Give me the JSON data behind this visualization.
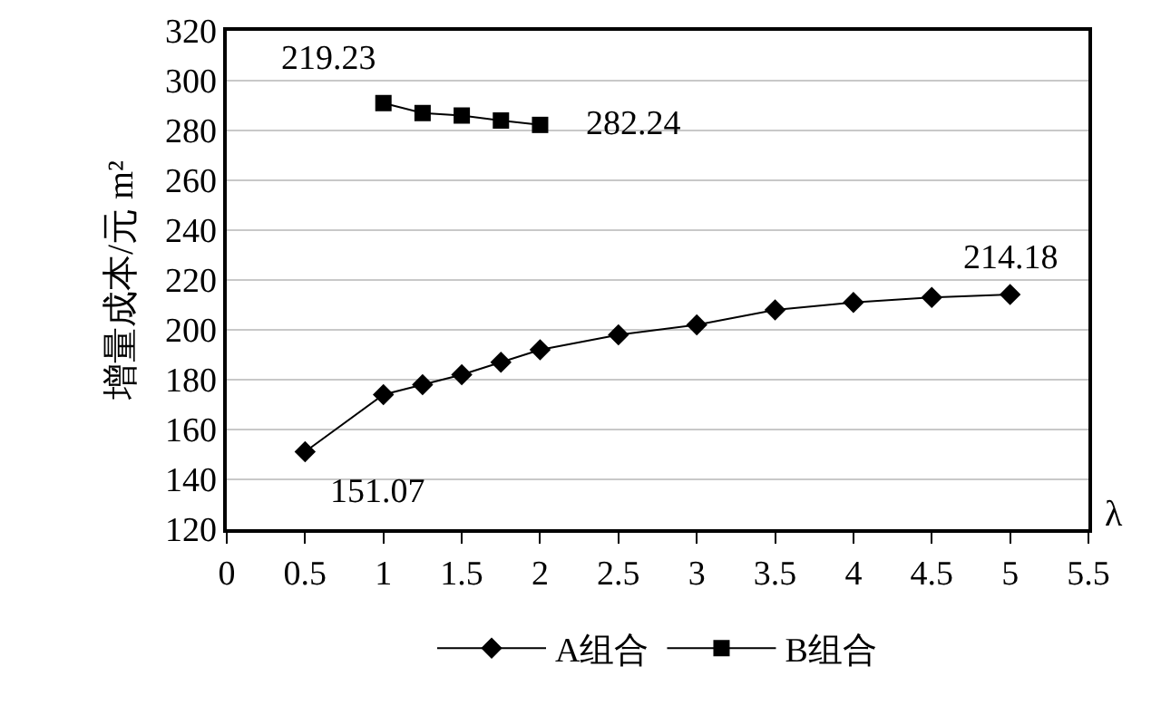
{
  "chart_data": {
    "type": "line",
    "xlabel": "λ",
    "ylabel": "增量成本/元 m²",
    "xlim": [
      0,
      5.5
    ],
    "xticks": [
      0,
      0.5,
      1,
      1.5,
      2,
      2.5,
      3,
      3.5,
      4,
      4.5,
      5,
      5.5
    ],
    "ylim": [
      120,
      320
    ],
    "yticks": [
      120,
      140,
      160,
      180,
      200,
      220,
      240,
      260,
      280,
      300,
      320
    ],
    "grid": "y",
    "legend": "bottom",
    "line_style": "solid",
    "series": [
      {
        "name": "A组合",
        "color": "#000000",
        "marker": "diamond",
        "x": [
          0.5,
          1,
          1.25,
          1.5,
          1.75,
          2,
          2.5,
          3,
          3.5,
          4,
          4.5,
          5
        ],
        "values": [
          151.07,
          174,
          178,
          182,
          187,
          192,
          198,
          202,
          208,
          211,
          213,
          214.18
        ]
      },
      {
        "name": "B组合",
        "color": "#000000",
        "marker": "square",
        "x": [
          1,
          1.25,
          1.5,
          1.75,
          2
        ],
        "values": [
          291,
          287,
          286,
          284,
          282.24
        ]
      }
    ],
    "annotations": [
      {
        "text": "219.23",
        "x": 1,
        "y": 291
      },
      {
        "text": "282.24",
        "x": 2,
        "y": 282.24
      },
      {
        "text": "151.07",
        "x": 0.5,
        "y": 151.07
      },
      {
        "text": "214.18",
        "x": 5,
        "y": 214.18
      }
    ]
  }
}
